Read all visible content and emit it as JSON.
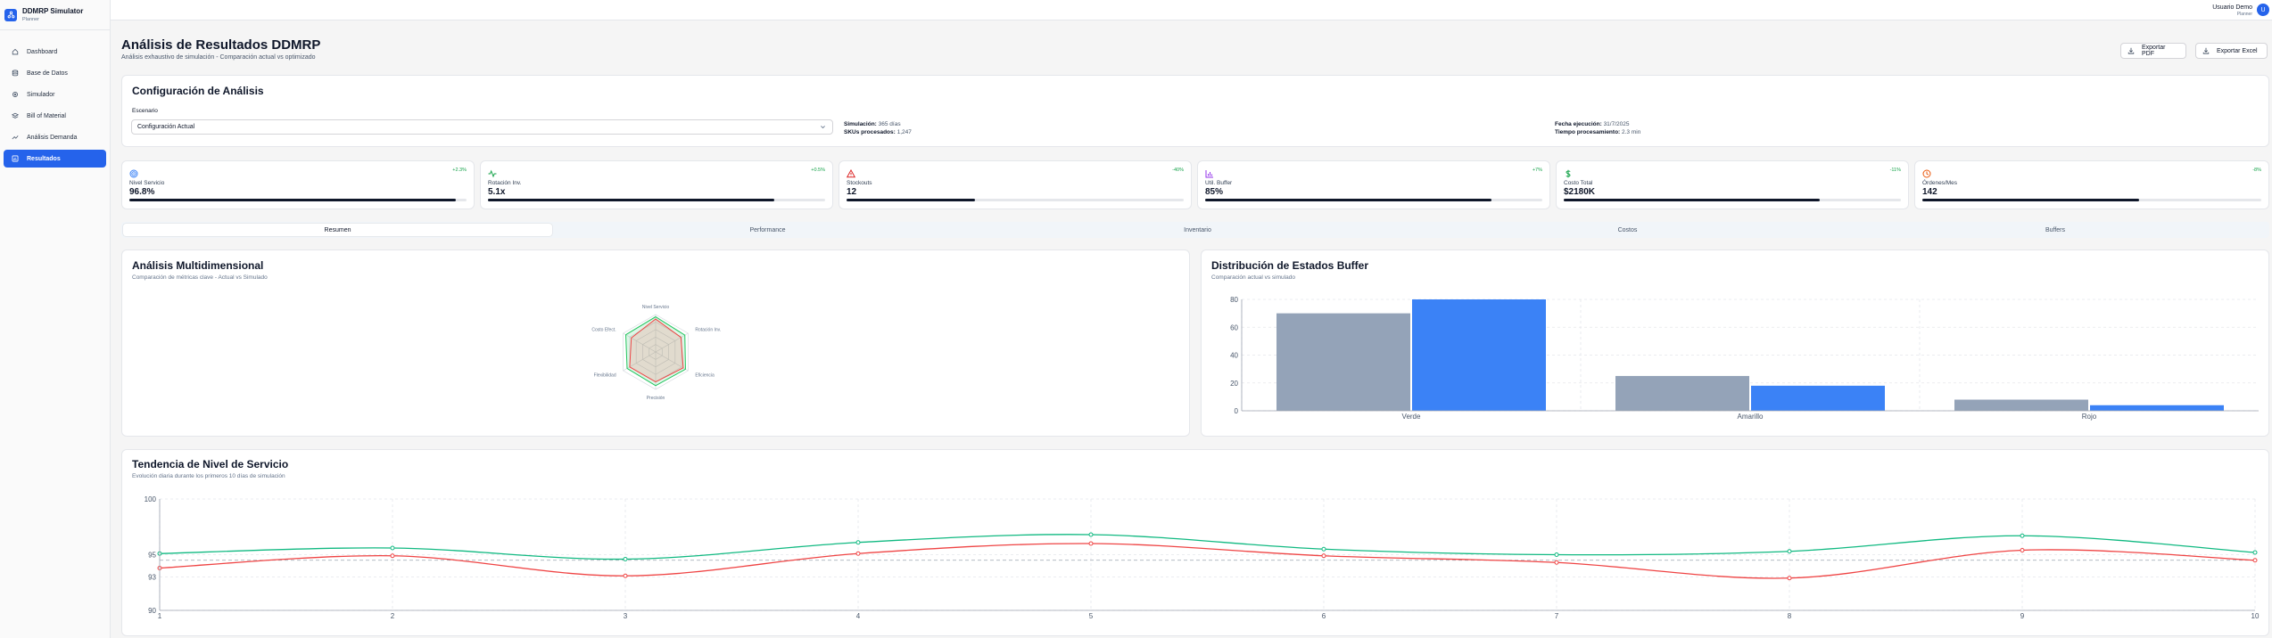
{
  "app": {
    "title": "DDMRP Simulator",
    "subtitle": "Planner",
    "logo_icon": "network-icon"
  },
  "sidebar": {
    "items": [
      {
        "label": "Dashboard",
        "icon": "home-icon",
        "active": false
      },
      {
        "label": "Base de Datos",
        "icon": "database-icon",
        "active": false
      },
      {
        "label": "Simulador",
        "icon": "gear-icon",
        "active": false
      },
      {
        "label": "Bill of Material",
        "icon": "layers-icon",
        "active": false
      },
      {
        "label": "Análisis Demanda",
        "icon": "trend-icon",
        "active": false
      },
      {
        "label": "Resultados",
        "icon": "bar-chart-icon",
        "active": true
      }
    ]
  },
  "user": {
    "name": "Usuario Demo",
    "role": "Planner",
    "initial": "U"
  },
  "page": {
    "title": "Análisis de Resultados DDMRP",
    "subtitle": "Análisis exhaustivo de simulación - Comparación actual vs optimizado"
  },
  "actions": {
    "export_pdf": "Exportar PDF",
    "export_excel": "Exportar Excel"
  },
  "config": {
    "title": "Configuración de Análisis",
    "scenario_label": "Escenario",
    "scenario_value": "Configuración Actual",
    "sim_label": "Simulación:",
    "sim_value": "365 días",
    "skus_label": "SKUs procesados:",
    "skus_value": "1,247",
    "date_label": "Fecha ejecución:",
    "date_value": "31/7/2025",
    "time_label": "Tiempo procesamiento:",
    "time_value": "2.3 min"
  },
  "metrics": [
    {
      "label": "Nivel Servicio",
      "value": "96.8%",
      "change": "+2.3%",
      "icon": "target-icon",
      "color": "#3b82f6",
      "progress": 0.968
    },
    {
      "label": "Rotación Inv.",
      "value": "5.1x",
      "change": "+0.5%",
      "icon": "activity-icon",
      "color": "#16a34a",
      "progress": 0.85
    },
    {
      "label": "Stockouts",
      "value": "12",
      "change": "-40%",
      "icon": "alert-triangle-icon",
      "color": "#dc2626",
      "progress": 0.38
    },
    {
      "label": "Util. Buffer",
      "value": "85%",
      "change": "+7%",
      "icon": "bar-chart-icon",
      "color": "#9333ea",
      "progress": 0.85
    },
    {
      "label": "Costo Total",
      "value": "$2180K",
      "change": "-11%",
      "icon": "dollar-icon",
      "color": "#16a34a",
      "progress": 0.76
    },
    {
      "label": "Órdenes/Mes",
      "value": "142",
      "change": "-8%",
      "icon": "clock-icon",
      "color": "#ea580c",
      "progress": 0.64
    }
  ],
  "tabs": [
    "Resumen",
    "Performance",
    "Inventario",
    "Costos",
    "Buffers"
  ],
  "radar": {
    "title": "Análisis Multidimensional",
    "subtitle": "Comparación de métricas clave - Actual vs Simulado",
    "axes": [
      "Nivel Servicio",
      "Rotación Inv.",
      "Eficiencia",
      "Precisión",
      "Flexibilidad",
      "Costo Efect."
    ],
    "actual": [
      88,
      78,
      85,
      80,
      80,
      75
    ],
    "simulado": [
      94,
      90,
      92,
      90,
      88,
      92
    ],
    "max": 100,
    "actual_color": "#ef4444",
    "simulado_color": "#22c55e"
  },
  "chart_data": [
    {
      "type": "bar",
      "title": "Distribución de Estados Buffer",
      "subtitle": "Comparación actual vs simulado",
      "categories": [
        "Verde",
        "Amarillo",
        "Rojo"
      ],
      "series": [
        {
          "values": [
            70,
            25,
            8
          ],
          "color": "#94a3b8"
        },
        {
          "values": [
            80,
            18,
            4
          ],
          "color": "#3b82f6"
        }
      ],
      "ylim": [
        0,
        80
      ],
      "yticks": [
        0,
        20,
        40,
        60,
        80
      ],
      "grid": true
    },
    {
      "type": "line",
      "title": "Tendencia de Nivel de Servicio",
      "subtitle": "Evolución diaria durante los primeros 10 días de simulación",
      "x": [
        1,
        2,
        3,
        4,
        5,
        6,
        7,
        8,
        9,
        10
      ],
      "series": [
        {
          "values": [
            95.1,
            95.6,
            94.6,
            96.1,
            96.8,
            95.5,
            95.0,
            95.3,
            96.7,
            95.2
          ],
          "color": "#10b981"
        },
        {
          "values": [
            93.8,
            94.9,
            93.1,
            95.1,
            96.0,
            94.9,
            94.3,
            92.9,
            95.4,
            94.5
          ],
          "color": "#ef4444"
        }
      ],
      "reference_line": 94.5,
      "ylim": [
        90,
        100
      ],
      "yticks": [
        90,
        93,
        95,
        100
      ],
      "grid": true
    }
  ]
}
